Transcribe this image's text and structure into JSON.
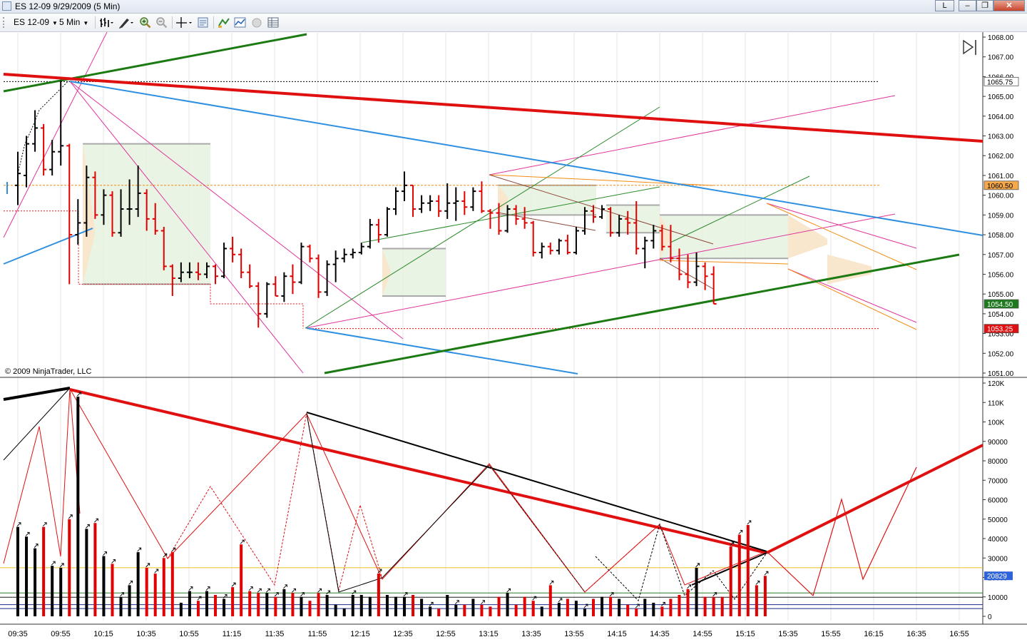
{
  "window": {
    "title": "ES 12-09  9/29/2009 (5 Min)",
    "controls": {
      "link": "L",
      "minimize": "‒",
      "maximize": "❐",
      "close": "✕"
    }
  },
  "toolbar": {
    "instrument": "ES 12-09",
    "interval": "5 Min",
    "tools": [
      "bar-style-icon",
      "drawing-tools-icon",
      "zoom-in-icon",
      "zoom-out-icon",
      "crosshair-icon",
      "properties-icon",
      "strategies-icon",
      "indicators-icon",
      "record-icon",
      "data-box-icon"
    ]
  },
  "colors": {
    "up_bar": "#000000",
    "down_bar": "#e00000",
    "background": "#ffffff",
    "green_line": "#1b7a12",
    "blue_line": "#2f8fe0",
    "red_line": "#e01010",
    "orange_line": "#f28b14",
    "magenta_line": "#e0359a"
  },
  "copyright": "© 2009 NinjaTrader, LLC",
  "chart_data": [
    {
      "type": "ohlc",
      "panel": "price",
      "instrument": "ES 12-09",
      "interval": "5 Min",
      "date": "9/29/2009",
      "y_ticks": [
        "1068.00",
        "1067.00",
        "1066.00",
        "1065.00",
        "1064.00",
        "1063.00",
        "1062.00",
        "1061.00",
        "1060.00",
        "1059.00",
        "1058.00",
        "1057.00",
        "1056.00",
        "1055.00",
        "1054.00",
        "1053.00",
        "1052.00",
        "1051.00"
      ],
      "ylim": [
        1051.0,
        1068.0
      ],
      "price_labels": [
        {
          "text": "1065.75",
          "value": 1065.75,
          "color": "#ffffff"
        },
        {
          "text": "1060.50",
          "value": 1060.5,
          "color": "#f6a94a"
        },
        {
          "text": "1054.50",
          "value": 1054.5,
          "color": "#1d7a1d"
        },
        {
          "text": "1053.25",
          "value": 1053.25,
          "color": "#e01010"
        }
      ],
      "bars": [
        {
          "t": "09:30",
          "o": 1060.5,
          "h": 1062.2,
          "l": 1059.5,
          "c": 1061.1
        },
        {
          "t": "09:35",
          "o": 1061.0,
          "h": 1063.0,
          "l": 1060.4,
          "c": 1062.6
        },
        {
          "t": "09:40",
          "o": 1062.6,
          "h": 1064.3,
          "l": 1062.2,
          "c": 1063.4
        },
        {
          "t": "09:45",
          "o": 1063.4,
          "h": 1063.6,
          "l": 1061.0,
          "c": 1061.3
        },
        {
          "t": "09:50",
          "o": 1061.3,
          "h": 1062.8,
          "l": 1061.0,
          "c": 1062.2
        },
        {
          "t": "09:55",
          "o": 1062.2,
          "h": 1065.8,
          "l": 1061.5,
          "c": 1062.5
        },
        {
          "t": "10:00",
          "o": 1062.5,
          "h": 1062.6,
          "l": 1055.5,
          "c": 1058.0
        },
        {
          "t": "10:05",
          "o": 1058.0,
          "h": 1059.8,
          "l": 1057.5,
          "c": 1058.6
        },
        {
          "t": "10:10",
          "o": 1058.6,
          "h": 1061.5,
          "l": 1057.9,
          "c": 1060.9
        },
        {
          "t": "10:15",
          "o": 1060.9,
          "h": 1061.2,
          "l": 1058.8,
          "c": 1059.0
        },
        {
          "t": "10:20",
          "o": 1059.0,
          "h": 1060.3,
          "l": 1058.5,
          "c": 1060.0
        },
        {
          "t": "10:25",
          "o": 1060.0,
          "h": 1060.2,
          "l": 1057.9,
          "c": 1058.1
        },
        {
          "t": "10:30",
          "o": 1058.1,
          "h": 1060.3,
          "l": 1057.9,
          "c": 1059.3
        },
        {
          "t": "10:35",
          "o": 1059.3,
          "h": 1060.8,
          "l": 1058.5,
          "c": 1059.3
        },
        {
          "t": "10:40",
          "o": 1059.3,
          "h": 1061.5,
          "l": 1058.9,
          "c": 1060.1
        },
        {
          "t": "10:45",
          "o": 1060.1,
          "h": 1060.3,
          "l": 1058.2,
          "c": 1058.8
        },
        {
          "t": "10:50",
          "o": 1058.8,
          "h": 1059.6,
          "l": 1058.0,
          "c": 1058.2
        },
        {
          "t": "10:55",
          "o": 1058.2,
          "h": 1058.4,
          "l": 1056.2,
          "c": 1056.4
        },
        {
          "t": "11:00",
          "o": 1056.4,
          "h": 1056.5,
          "l": 1054.9,
          "c": 1055.8
        },
        {
          "t": "11:05",
          "o": 1055.8,
          "h": 1056.6,
          "l": 1055.6,
          "c": 1056.1
        },
        {
          "t": "11:10",
          "o": 1056.1,
          "h": 1056.6,
          "l": 1055.8,
          "c": 1056.1
        },
        {
          "t": "11:15",
          "o": 1056.1,
          "h": 1056.6,
          "l": 1055.7,
          "c": 1056.0
        },
        {
          "t": "11:20",
          "o": 1056.0,
          "h": 1056.6,
          "l": 1055.8,
          "c": 1056.4
        },
        {
          "t": "11:25",
          "o": 1056.4,
          "h": 1056.5,
          "l": 1055.5,
          "c": 1055.9
        },
        {
          "t": "11:30",
          "o": 1055.9,
          "h": 1057.6,
          "l": 1055.8,
          "c": 1057.3
        },
        {
          "t": "11:35",
          "o": 1057.3,
          "h": 1057.9,
          "l": 1056.6,
          "c": 1057.0
        },
        {
          "t": "11:40",
          "o": 1057.0,
          "h": 1057.3,
          "l": 1055.8,
          "c": 1056.1
        },
        {
          "t": "11:45",
          "o": 1056.1,
          "h": 1056.5,
          "l": 1055.3,
          "c": 1055.4
        },
        {
          "t": "11:50",
          "o": 1055.4,
          "h": 1055.6,
          "l": 1053.3,
          "c": 1054.0
        },
        {
          "t": "11:55",
          "o": 1054.0,
          "h": 1055.6,
          "l": 1053.8,
          "c": 1055.5
        },
        {
          "t": "12:00",
          "o": 1055.5,
          "h": 1055.9,
          "l": 1054.9,
          "c": 1054.9
        },
        {
          "t": "12:05",
          "o": 1054.9,
          "h": 1056.1,
          "l": 1054.6,
          "c": 1055.9
        },
        {
          "t": "12:10",
          "o": 1055.9,
          "h": 1056.5,
          "l": 1055.0,
          "c": 1055.6
        },
        {
          "t": "12:15",
          "o": 1055.6,
          "h": 1057.6,
          "l": 1055.5,
          "c": 1057.4
        },
        {
          "t": "12:20",
          "o": 1057.4,
          "h": 1057.5,
          "l": 1056.6,
          "c": 1056.8
        },
        {
          "t": "12:25",
          "o": 1056.8,
          "h": 1057.0,
          "l": 1054.8,
          "c": 1055.1
        },
        {
          "t": "12:30",
          "o": 1055.1,
          "h": 1056.7,
          "l": 1054.9,
          "c": 1056.5
        },
        {
          "t": "12:35",
          "o": 1056.5,
          "h": 1057.2,
          "l": 1055.6,
          "c": 1056.8
        },
        {
          "t": "12:40",
          "o": 1056.8,
          "h": 1057.3,
          "l": 1056.6,
          "c": 1057.0
        },
        {
          "t": "12:45",
          "o": 1057.0,
          "h": 1057.3,
          "l": 1056.8,
          "c": 1057.1
        },
        {
          "t": "12:50",
          "o": 1057.1,
          "h": 1057.6,
          "l": 1057.0,
          "c": 1057.4
        },
        {
          "t": "12:55",
          "o": 1057.4,
          "h": 1058.8,
          "l": 1057.3,
          "c": 1058.5
        },
        {
          "t": "13:00",
          "o": 1058.5,
          "h": 1058.8,
          "l": 1057.6,
          "c": 1058.0
        },
        {
          "t": "13:05",
          "o": 1058.0,
          "h": 1059.4,
          "l": 1057.9,
          "c": 1059.3
        },
        {
          "t": "13:10",
          "o": 1059.3,
          "h": 1060.4,
          "l": 1059.0,
          "c": 1060.2
        },
        {
          "t": "13:15",
          "o": 1060.2,
          "h": 1061.2,
          "l": 1059.7,
          "c": 1060.5
        },
        {
          "t": "13:20",
          "o": 1060.5,
          "h": 1060.5,
          "l": 1058.9,
          "c": 1059.3
        },
        {
          "t": "13:25",
          "o": 1059.3,
          "h": 1060.0,
          "l": 1059.1,
          "c": 1059.6
        },
        {
          "t": "13:30",
          "o": 1059.6,
          "h": 1060.0,
          "l": 1059.2,
          "c": 1059.7
        },
        {
          "t": "13:35",
          "o": 1059.7,
          "h": 1060.0,
          "l": 1058.9,
          "c": 1059.2
        },
        {
          "t": "13:40",
          "o": 1059.2,
          "h": 1060.6,
          "l": 1058.8,
          "c": 1059.6
        },
        {
          "t": "13:45",
          "o": 1059.6,
          "h": 1060.4,
          "l": 1058.7,
          "c": 1059.7
        },
        {
          "t": "13:50",
          "o": 1059.7,
          "h": 1060.2,
          "l": 1059.0,
          "c": 1059.4
        },
        {
          "t": "13:55",
          "o": 1059.4,
          "h": 1060.4,
          "l": 1059.2,
          "c": 1060.2
        },
        {
          "t": "14:00",
          "o": 1060.2,
          "h": 1060.7,
          "l": 1059.1,
          "c": 1059.2
        },
        {
          "t": "14:05",
          "o": 1059.2,
          "h": 1059.3,
          "l": 1058.3,
          "c": 1059.1
        },
        {
          "t": "14:10",
          "o": 1059.1,
          "h": 1059.6,
          "l": 1058.0,
          "c": 1058.2
        },
        {
          "t": "14:15",
          "o": 1058.2,
          "h": 1059.5,
          "l": 1058.1,
          "c": 1059.3
        },
        {
          "t": "14:20",
          "o": 1059.3,
          "h": 1059.5,
          "l": 1058.5,
          "c": 1058.8
        },
        {
          "t": "14:25",
          "o": 1058.8,
          "h": 1059.4,
          "l": 1058.3,
          "c": 1058.6
        },
        {
          "t": "14:30",
          "o": 1058.6,
          "h": 1058.7,
          "l": 1056.9,
          "c": 1057.1
        },
        {
          "t": "14:35",
          "o": 1057.1,
          "h": 1057.6,
          "l": 1056.8,
          "c": 1057.4
        },
        {
          "t": "14:40",
          "o": 1057.4,
          "h": 1057.6,
          "l": 1057.0,
          "c": 1057.2
        },
        {
          "t": "14:45",
          "o": 1057.2,
          "h": 1057.8,
          "l": 1057.0,
          "c": 1057.7
        },
        {
          "t": "14:50",
          "o": 1057.7,
          "h": 1058.0,
          "l": 1057.0,
          "c": 1057.1
        },
        {
          "t": "14:55",
          "o": 1057.1,
          "h": 1058.4,
          "l": 1057.0,
          "c": 1058.2
        },
        {
          "t": "15:00",
          "o": 1058.2,
          "h": 1059.4,
          "l": 1058.0,
          "c": 1059.2
        },
        {
          "t": "15:05",
          "o": 1059.2,
          "h": 1059.5,
          "l": 1058.6,
          "c": 1058.9
        },
        {
          "t": "15:10",
          "o": 1058.9,
          "h": 1059.5,
          "l": 1058.8,
          "c": 1059.3
        },
        {
          "t": "15:15",
          "o": 1059.3,
          "h": 1059.4,
          "l": 1057.9,
          "c": 1058.1
        },
        {
          "t": "15:20",
          "o": 1058.1,
          "h": 1059.0,
          "l": 1057.9,
          "c": 1058.8
        },
        {
          "t": "15:25",
          "o": 1058.8,
          "h": 1059.2,
          "l": 1058.0,
          "c": 1058.6
        },
        {
          "t": "15:30",
          "o": 1058.6,
          "h": 1059.7,
          "l": 1057.0,
          "c": 1057.3
        },
        {
          "t": "15:35",
          "o": 1057.3,
          "h": 1057.9,
          "l": 1056.3,
          "c": 1057.7
        },
        {
          "t": "15:40",
          "o": 1057.7,
          "h": 1058.5,
          "l": 1057.3,
          "c": 1058.2
        },
        {
          "t": "15:45",
          "o": 1058.2,
          "h": 1058.5,
          "l": 1057.2,
          "c": 1057.4
        },
        {
          "t": "15:50",
          "o": 1057.4,
          "h": 1058.5,
          "l": 1056.6,
          "c": 1056.8
        },
        {
          "t": "15:55",
          "o": 1056.8,
          "h": 1057.3,
          "l": 1055.7,
          "c": 1056.0
        },
        {
          "t": "16:00",
          "o": 1056.0,
          "h": 1057.0,
          "l": 1055.3,
          "c": 1055.6
        },
        {
          "t": "16:05",
          "o": 1055.6,
          "h": 1057.1,
          "l": 1055.4,
          "c": 1056.4
        },
        {
          "t": "16:10",
          "o": 1056.4,
          "h": 1056.6,
          "l": 1055.2,
          "c": 1055.9
        },
        {
          "t": "16:15",
          "o": 1056.0,
          "h": 1056.4,
          "l": 1054.5,
          "c": 1054.5
        }
      ]
    },
    {
      "type": "bar",
      "panel": "volume",
      "y_ticks": [
        "120K",
        "110K",
        "100K",
        "90000",
        "80000",
        "70000",
        "60000",
        "50000",
        "40000",
        "30000",
        "20000",
        "10000",
        "0"
      ],
      "ylim": [
        0,
        120000
      ],
      "last_label": {
        "text": "20829",
        "value": 20829,
        "color": "#2e62d8"
      },
      "x_ticks": [
        "09:35",
        "09:55",
        "10:15",
        "10:35",
        "10:55",
        "11:15",
        "11:35",
        "11:55",
        "12:15",
        "12:35",
        "12:55",
        "13:15",
        "13:35",
        "13:55",
        "14:15",
        "14:35",
        "14:55",
        "15:15",
        "15:35",
        "15:55",
        "16:15",
        "16:35",
        "16:55"
      ],
      "values": [
        46000,
        41000,
        35000,
        46000,
        26000,
        25000,
        50000,
        113000,
        45000,
        48000,
        31000,
        27000,
        10000,
        16000,
        33000,
        25000,
        22000,
        30000,
        33000,
        7000,
        13000,
        8000,
        13000,
        11000,
        9000,
        15000,
        37000,
        13000,
        12000,
        12000,
        10000,
        14000,
        12000,
        10000,
        8000,
        12000,
        11000,
        6000,
        4000,
        11000,
        11000,
        10000,
        22000,
        11000,
        10000,
        10000,
        11000,
        9000,
        5000,
        4000,
        11000,
        6000,
        6000,
        9000,
        6000,
        5000,
        10000,
        12000,
        6000,
        10000,
        8000,
        5000,
        16000,
        7000,
        9000,
        8000,
        4000,
        9000,
        10000,
        10000,
        9000,
        6000,
        4000,
        9000,
        7000,
        5000,
        9000,
        11000,
        14000,
        25000,
        10000,
        10000,
        10000,
        36000,
        42000,
        47000,
        16000,
        20829
      ]
    }
  ]
}
